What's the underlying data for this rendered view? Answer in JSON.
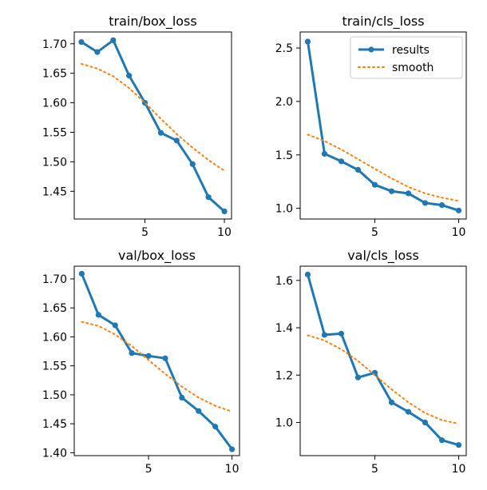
{
  "colors": {
    "results": "#1f77b4",
    "smooth": "#ff7f0e"
  },
  "legend": {
    "location": "upper right",
    "entries": [
      "results",
      "smooth"
    ]
  },
  "chart_data": [
    {
      "type": "line",
      "title": "train/box_loss",
      "xlabel": "",
      "ylabel": "",
      "x": [
        1,
        2,
        3,
        4,
        5,
        6,
        7,
        8,
        9,
        10
      ],
      "xlim": [
        0.55,
        10.45
      ],
      "ylim": [
        1.403,
        1.72
      ],
      "xticks": [
        5,
        10
      ],
      "yticks": [
        1.45,
        1.5,
        1.55,
        1.6,
        1.65,
        1.7
      ],
      "ytick_labels": [
        "1.45",
        "1.50",
        "1.55",
        "1.60",
        "1.65",
        "1.70"
      ],
      "grid": false,
      "series": [
        {
          "name": "results",
          "style": "solid-markers",
          "values": [
            1.703,
            1.686,
            1.706,
            1.646,
            1.6,
            1.549,
            1.536,
            1.496,
            1.44,
            1.416
          ]
        },
        {
          "name": "smooth",
          "style": "dotted",
          "values": [
            1.666,
            1.658,
            1.645,
            1.625,
            1.6,
            1.573,
            1.547,
            1.524,
            1.503,
            1.485
          ]
        }
      ]
    },
    {
      "type": "line",
      "title": "train/cls_loss",
      "xlabel": "",
      "ylabel": "",
      "x": [
        1,
        2,
        3,
        4,
        5,
        6,
        7,
        8,
        9,
        10
      ],
      "xlim": [
        0.55,
        10.45
      ],
      "ylim": [
        0.9,
        2.65
      ],
      "xticks": [
        5,
        10
      ],
      "yticks": [
        1.0,
        1.5,
        2.0,
        2.5
      ],
      "ytick_labels": [
        "1.0",
        "1.5",
        "2.0",
        "2.5"
      ],
      "grid": false,
      "series": [
        {
          "name": "results",
          "style": "solid-markers",
          "values": [
            2.56,
            1.51,
            1.44,
            1.36,
            1.22,
            1.16,
            1.14,
            1.05,
            1.03,
            0.98
          ]
        },
        {
          "name": "smooth",
          "style": "dotted",
          "values": [
            1.69,
            1.63,
            1.55,
            1.46,
            1.37,
            1.28,
            1.2,
            1.14,
            1.1,
            1.07
          ]
        }
      ]
    },
    {
      "type": "line",
      "title": "val/box_loss",
      "xlabel": "",
      "ylabel": "",
      "x": [
        1,
        2,
        3,
        4,
        5,
        6,
        7,
        8,
        9,
        10
      ],
      "xlim": [
        0.55,
        10.45
      ],
      "ylim": [
        1.395,
        1.722
      ],
      "xticks": [
        5,
        10
      ],
      "yticks": [
        1.4,
        1.45,
        1.5,
        1.55,
        1.6,
        1.65,
        1.7
      ],
      "ytick_labels": [
        "1.40",
        "1.45",
        "1.50",
        "1.55",
        "1.60",
        "1.65",
        "1.70"
      ],
      "grid": false,
      "series": [
        {
          "name": "results",
          "style": "solid-markers",
          "values": [
            1.709,
            1.638,
            1.62,
            1.572,
            1.567,
            1.563,
            1.495,
            1.472,
            1.445,
            1.406
          ]
        },
        {
          "name": "smooth",
          "style": "dotted",
          "values": [
            1.626,
            1.619,
            1.604,
            1.584,
            1.56,
            1.536,
            1.514,
            1.495,
            1.481,
            1.471
          ]
        }
      ]
    },
    {
      "type": "line",
      "title": "val/cls_loss",
      "xlabel": "",
      "ylabel": "",
      "x": [
        1,
        2,
        3,
        4,
        5,
        6,
        7,
        8,
        9,
        10
      ],
      "xlim": [
        0.55,
        10.45
      ],
      "ylim": [
        0.86,
        1.66
      ],
      "xticks": [
        5,
        10
      ],
      "yticks": [
        1.0,
        1.2,
        1.4,
        1.6
      ],
      "ytick_labels": [
        "1.0",
        "1.2",
        "1.4",
        "1.6"
      ],
      "grid": false,
      "series": [
        {
          "name": "results",
          "style": "solid-markers",
          "values": [
            1.625,
            1.37,
            1.375,
            1.19,
            1.21,
            1.085,
            1.045,
            1.0,
            0.925,
            0.905
          ]
        },
        {
          "name": "smooth",
          "style": "dotted",
          "values": [
            1.368,
            1.346,
            1.309,
            1.26,
            1.2,
            1.14,
            1.085,
            1.04,
            1.01,
            0.995
          ]
        }
      ]
    }
  ]
}
